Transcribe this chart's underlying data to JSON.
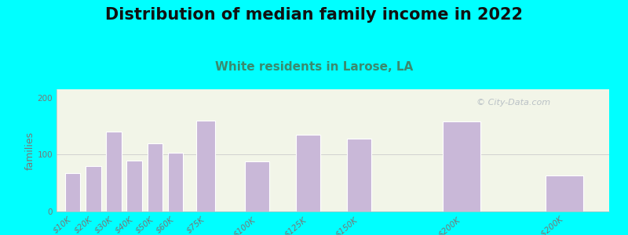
{
  "title": "Distribution of median family income in 2022",
  "subtitle": "White residents in Larose, LA",
  "ylabel": "families",
  "categories": [
    "$10K",
    "$20K",
    "$30K",
    "$40K",
    "$50K",
    "$60K",
    "$75K",
    "$100K",
    "$125K",
    "$150K",
    "$200K",
    "> $200K"
  ],
  "x_positions": [
    10,
    20,
    30,
    40,
    50,
    60,
    75,
    100,
    125,
    150,
    200,
    250
  ],
  "values": [
    68,
    80,
    140,
    90,
    120,
    103,
    160,
    88,
    135,
    128,
    158,
    63
  ],
  "bar_widths": [
    8,
    8,
    8,
    8,
    8,
    8,
    10,
    13,
    13,
    13,
    20,
    20
  ],
  "bar_color": "#c9b8d8",
  "bar_edge_color": "#ffffff",
  "bg_color": "#00ffff",
  "plot_bg_color": "#f2f5e8",
  "title_fontsize": 15,
  "subtitle_fontsize": 11,
  "subtitle_color": "#3a8a6e",
  "ylabel_fontsize": 9,
  "tick_color": "#777777",
  "tick_fontsize": 7.5,
  "yticks": [
    0,
    100,
    200
  ],
  "ylim": [
    0,
    215
  ],
  "xlim": [
    2,
    272
  ],
  "watermark_text": "© City-Data.com",
  "watermark_color": "#b0b8c0"
}
